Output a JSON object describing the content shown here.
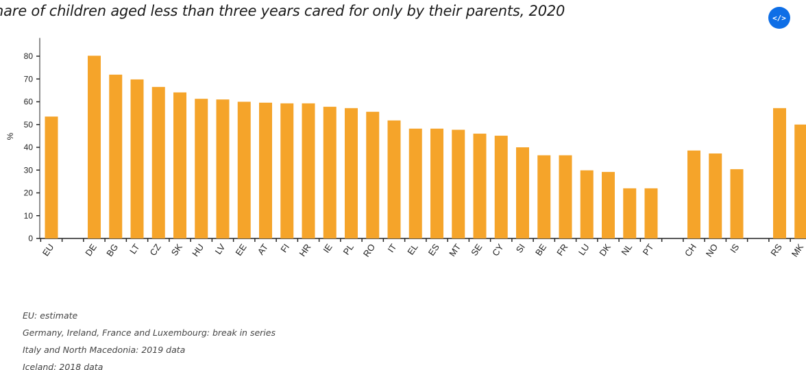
{
  "header": {
    "title": "hare of children aged less than three years cared for only by their parents, 2020",
    "embed_icon": "code-embed-icon",
    "embed_color": "#0e6ee6"
  },
  "chart_data": {
    "type": "bar",
    "ylabel": "%",
    "ylim": [
      0,
      88
    ],
    "yticks": [
      0,
      10,
      20,
      30,
      40,
      50,
      60,
      70,
      80
    ],
    "bar_color": "#f5a42a",
    "grid": false,
    "categories": [
      "EU",
      "",
      "DE",
      "BG",
      "LT",
      "CZ",
      "SK",
      "HU",
      "LV",
      "EE",
      "AT",
      "FI",
      "HR",
      "IE",
      "PL",
      "RO",
      "IT",
      "EL",
      "ES",
      "MT",
      "SE",
      "CY",
      "SI",
      "BE",
      "FR",
      "LU",
      "DK",
      "NL",
      "PT",
      "",
      "CH",
      "NO",
      "IS",
      "",
      "RS",
      "MK"
    ],
    "values": [
      53.5,
      null,
      80.2,
      71.9,
      69.8,
      66.5,
      64.1,
      61.3,
      61.0,
      60.0,
      59.6,
      59.3,
      59.3,
      57.8,
      57.2,
      55.6,
      51.8,
      48.2,
      48.2,
      47.7,
      46.0,
      45.1,
      40.0,
      36.5,
      36.5,
      29.9,
      29.2,
      22.0,
      22.0,
      null,
      38.6,
      37.3,
      30.4,
      null,
      57.2,
      50.0
    ]
  },
  "notes": [
    "EU: estimate",
    "Germany, Ireland, France and Luxembourg: break in series",
    "Italy and North Macedonia: 2019 data",
    "Iceland: 2018 data"
  ]
}
